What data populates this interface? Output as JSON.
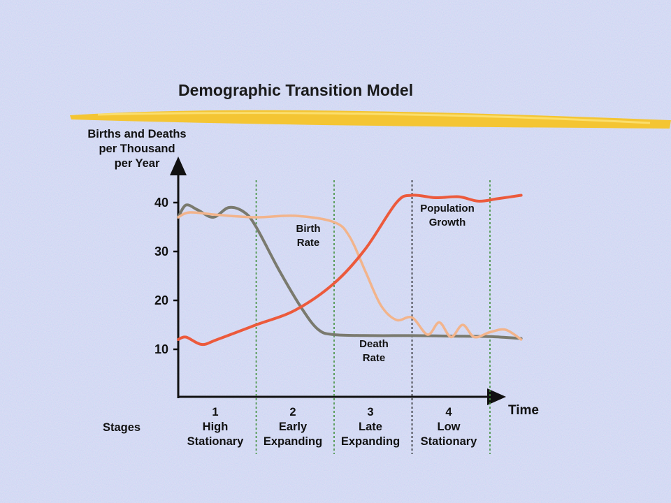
{
  "chart_data": {
    "type": "line",
    "title": "Demographic Transition Model",
    "ylabel_lines": [
      "Births and Deaths",
      "per Thousand",
      "per Year"
    ],
    "xlabel": "Time",
    "ylim": [
      0,
      45
    ],
    "yticks": [
      10,
      20,
      30,
      40
    ],
    "stages_label": "Stages",
    "stages": [
      {
        "number": "1",
        "line1": "High",
        "line2": "Stationary"
      },
      {
        "number": "2",
        "line1": "Early",
        "line2": "Expanding"
      },
      {
        "number": "3",
        "line1": "Late",
        "line2": "Expanding"
      },
      {
        "number": "4",
        "line1": "Low",
        "line2": "Stationary"
      }
    ],
    "x_units": "time (stage boundaries at 1, 2, 3, 4)",
    "series": [
      {
        "name": "Birth Rate",
        "label_lines": [
          "Birth",
          "Rate"
        ],
        "color": "#f2b48c",
        "x": [
          0,
          0.15,
          0.5,
          1.0,
          1.5,
          2.0,
          2.2,
          2.4,
          2.6,
          2.8,
          3.0,
          3.2,
          3.35,
          3.5,
          3.65,
          3.8,
          4.0,
          4.2,
          4.4
        ],
        "y": [
          37,
          38,
          37.5,
          37,
          37.3,
          36,
          33,
          26,
          19,
          16,
          16.5,
          13,
          15.5,
          12.5,
          15,
          12.5,
          13.5,
          14,
          12
        ]
      },
      {
        "name": "Death Rate",
        "label_lines": [
          "Death",
          "Rate"
        ],
        "color": "#7a7a6e",
        "x": [
          0,
          0.1,
          0.25,
          0.45,
          0.65,
          0.85,
          1.0,
          1.3,
          1.6,
          1.8,
          2.0,
          2.5,
          3.0,
          3.5,
          4.0,
          4.4
        ],
        "y": [
          37,
          39.5,
          38.5,
          37,
          39,
          38,
          35,
          26,
          18,
          14,
          13,
          12.8,
          12.8,
          12.7,
          12.6,
          12.2
        ]
      },
      {
        "name": "Population Growth",
        "label_lines": [
          "Population",
          "Growth"
        ],
        "color": "#ec5a3c",
        "x": [
          0,
          0.1,
          0.3,
          0.5,
          1.0,
          1.5,
          2.0,
          2.4,
          2.8,
          3.0,
          3.3,
          3.6,
          3.85,
          4.1,
          4.4
        ],
        "y": [
          12,
          12.5,
          11,
          12,
          15,
          18,
          23.5,
          30.5,
          40,
          41.5,
          41,
          41.2,
          40.3,
          40.8,
          41.5
        ]
      }
    ]
  }
}
